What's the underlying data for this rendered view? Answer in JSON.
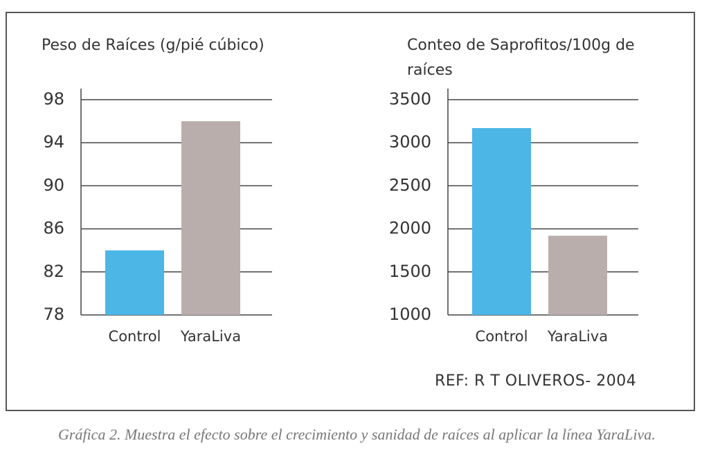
{
  "chart_data": [
    {
      "type": "bar",
      "title": "Peso de Raíces (g/pié cúbico)",
      "categories": [
        "Control",
        "YaraLiva"
      ],
      "values": [
        84,
        96
      ],
      "colors": [
        "#4cb6e6",
        "#b9aeab"
      ],
      "ylim": [
        78,
        98
      ],
      "yticks": [
        78,
        82,
        86,
        90,
        94,
        98
      ],
      "grid": true
    },
    {
      "type": "bar",
      "title": "Conteo de Saprofitos/100g de raíces",
      "categories": [
        "Control",
        "YaraLiva"
      ],
      "values": [
        3170,
        1920
      ],
      "colors": [
        "#4cb6e6",
        "#b9aeab"
      ],
      "ylim": [
        1000,
        3500
      ],
      "yticks": [
        1000,
        1500,
        2000,
        2500,
        3000,
        3500
      ],
      "grid": true
    }
  ],
  "reference": "REF:  R T OLIVEROS- 2004",
  "caption": "Gráfica 2. Muestra el efecto sobre el crecimiento y sanidad de raíces al aplicar la línea YaraLiva."
}
